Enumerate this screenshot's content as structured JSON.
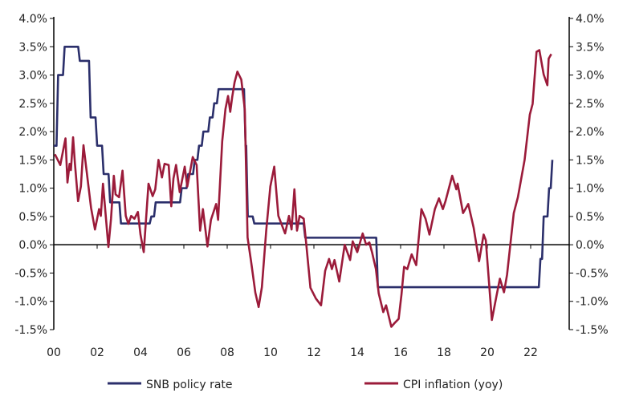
{
  "chart_data": {
    "type": "line",
    "xlim": [
      2000,
      2023.3
    ],
    "ylim": [
      -1.5,
      4.0
    ],
    "y_ticks": [
      "4.0%",
      "3.5%",
      "3.0%",
      "2.5%",
      "2.0%",
      "1.5%",
      "1.0%",
      "0.5%",
      "0.0%",
      "-0.5%",
      "-1.0%",
      "-1.5%"
    ],
    "y_tick_values": [
      4.0,
      3.5,
      3.0,
      2.5,
      2.0,
      1.5,
      1.0,
      0.5,
      0.0,
      -0.5,
      -1.0,
      -1.5
    ],
    "x_ticks": [
      "00",
      "02",
      "04",
      "06",
      "08",
      "10",
      "12",
      "14",
      "16",
      "18",
      "20",
      "22"
    ],
    "x_tick_values": [
      2000,
      2002,
      2004,
      2006,
      2008,
      2010,
      2012,
      2014,
      2016,
      2018,
      2020,
      2022
    ],
    "grid": false,
    "legend_position": "bottom",
    "series": [
      {
        "name": "SNB policy rate",
        "color": "#2b2f6b",
        "step": true,
        "points": [
          [
            2000.0,
            1.75
          ],
          [
            2000.2,
            3.0
          ],
          [
            2000.5,
            3.5
          ],
          [
            2001.2,
            3.25
          ],
          [
            2001.7,
            2.25
          ],
          [
            2002.0,
            1.75
          ],
          [
            2002.3,
            1.25
          ],
          [
            2002.6,
            0.75
          ],
          [
            2003.1,
            0.375
          ],
          [
            2004.5,
            0.5
          ],
          [
            2004.7,
            0.75
          ],
          [
            2005.9,
            1.0
          ],
          [
            2006.2,
            1.25
          ],
          [
            2006.5,
            1.5
          ],
          [
            2006.7,
            1.75
          ],
          [
            2006.9,
            2.0
          ],
          [
            2007.2,
            2.25
          ],
          [
            2007.4,
            2.5
          ],
          [
            2007.6,
            2.75
          ],
          [
            2008.85,
            1.75
          ],
          [
            2008.95,
            0.5
          ],
          [
            2009.25,
            0.375
          ],
          [
            2011.6,
            0.125
          ],
          [
            2014.95,
            -0.75
          ],
          [
            2022.45,
            -0.25
          ],
          [
            2022.6,
            0.5
          ],
          [
            2022.85,
            1.0
          ],
          [
            2023.0,
            1.5
          ]
        ]
      },
      {
        "name": "CPI inflation (yoy)",
        "color": "#9b1b3a",
        "step": false,
        "points": [
          [
            2000.05,
            1.6
          ],
          [
            2000.3,
            1.41
          ],
          [
            2000.54,
            1.88
          ],
          [
            2000.63,
            1.1
          ],
          [
            2000.73,
            1.43
          ],
          [
            2000.79,
            1.32
          ],
          [
            2000.89,
            1.9
          ],
          [
            2000.97,
            1.46
          ],
          [
            2001.12,
            0.77
          ],
          [
            2001.25,
            1.03
          ],
          [
            2001.37,
            1.76
          ],
          [
            2001.72,
            0.65
          ],
          [
            2001.9,
            0.27
          ],
          [
            2002.09,
            0.63
          ],
          [
            2002.17,
            0.51
          ],
          [
            2002.27,
            1.08
          ],
          [
            2002.52,
            -0.04
          ],
          [
            2002.64,
            0.46
          ],
          [
            2002.77,
            1.22
          ],
          [
            2002.85,
            0.89
          ],
          [
            2003.01,
            0.84
          ],
          [
            2003.17,
            1.31
          ],
          [
            2003.32,
            0.51
          ],
          [
            2003.44,
            0.37
          ],
          [
            2003.57,
            0.51
          ],
          [
            2003.72,
            0.46
          ],
          [
            2003.88,
            0.58
          ],
          [
            2004.0,
            0.18
          ],
          [
            2004.15,
            -0.13
          ],
          [
            2004.37,
            1.08
          ],
          [
            2004.56,
            0.86
          ],
          [
            2004.68,
            0.98
          ],
          [
            2004.83,
            1.5
          ],
          [
            2004.99,
            1.19
          ],
          [
            2005.11,
            1.43
          ],
          [
            2005.3,
            1.41
          ],
          [
            2005.42,
            0.68
          ],
          [
            2005.52,
            1.17
          ],
          [
            2005.64,
            1.41
          ],
          [
            2005.81,
            0.93
          ],
          [
            2006.04,
            1.38
          ],
          [
            2006.16,
            1.03
          ],
          [
            2006.41,
            1.55
          ],
          [
            2006.59,
            1.41
          ],
          [
            2006.75,
            0.25
          ],
          [
            2006.88,
            0.63
          ],
          [
            2007.09,
            -0.03
          ],
          [
            2007.25,
            0.44
          ],
          [
            2007.49,
            0.72
          ],
          [
            2007.58,
            0.44
          ],
          [
            2007.77,
            1.83
          ],
          [
            2007.92,
            2.4
          ],
          [
            2008.04,
            2.63
          ],
          [
            2008.14,
            2.35
          ],
          [
            2008.23,
            2.61
          ],
          [
            2008.34,
            2.87
          ],
          [
            2008.47,
            3.06
          ],
          [
            2008.65,
            2.92
          ],
          [
            2008.81,
            2.4
          ],
          [
            2008.94,
            0.13
          ],
          [
            2009.1,
            -0.29
          ],
          [
            2009.3,
            -0.85
          ],
          [
            2009.45,
            -1.1
          ],
          [
            2009.6,
            -0.75
          ],
          [
            2009.8,
            0.25
          ],
          [
            2009.99,
            1.03
          ],
          [
            2010.17,
            1.38
          ],
          [
            2010.36,
            0.51
          ],
          [
            2010.67,
            0.2
          ],
          [
            2010.85,
            0.51
          ],
          [
            2010.97,
            0.27
          ],
          [
            2011.1,
            0.98
          ],
          [
            2011.22,
            0.25
          ],
          [
            2011.34,
            0.51
          ],
          [
            2011.53,
            0.46
          ],
          [
            2011.65,
            0.0
          ],
          [
            2011.84,
            -0.76
          ],
          [
            2012.09,
            -0.95
          ],
          [
            2012.33,
            -1.07
          ],
          [
            2012.52,
            -0.46
          ],
          [
            2012.7,
            -0.25
          ],
          [
            2012.83,
            -0.43
          ],
          [
            2012.95,
            -0.27
          ],
          [
            2013.17,
            -0.65
          ],
          [
            2013.42,
            0.0
          ],
          [
            2013.67,
            -0.27
          ],
          [
            2013.79,
            0.06
          ],
          [
            2014.0,
            -0.13
          ],
          [
            2014.25,
            0.2
          ],
          [
            2014.41,
            0.0
          ],
          [
            2014.56,
            0.04
          ],
          [
            2014.68,
            -0.13
          ],
          [
            2014.86,
            -0.43
          ],
          [
            2014.99,
            -0.86
          ],
          [
            2015.2,
            -1.19
          ],
          [
            2015.33,
            -1.07
          ],
          [
            2015.57,
            -1.45
          ],
          [
            2015.73,
            -1.38
          ],
          [
            2015.91,
            -1.31
          ],
          [
            2016.04,
            -0.88
          ],
          [
            2016.16,
            -0.39
          ],
          [
            2016.31,
            -0.43
          ],
          [
            2016.51,
            -0.17
          ],
          [
            2016.72,
            -0.36
          ],
          [
            2016.96,
            0.63
          ],
          [
            2017.15,
            0.46
          ],
          [
            2017.33,
            0.18
          ],
          [
            2017.58,
            0.63
          ],
          [
            2017.77,
            0.82
          ],
          [
            2017.95,
            0.63
          ],
          [
            2018.07,
            0.77
          ],
          [
            2018.38,
            1.22
          ],
          [
            2018.57,
            0.98
          ],
          [
            2018.63,
            1.08
          ],
          [
            2018.88,
            0.56
          ],
          [
            2019.12,
            0.72
          ],
          [
            2019.37,
            0.3
          ],
          [
            2019.62,
            -0.29
          ],
          [
            2019.83,
            0.18
          ],
          [
            2019.93,
            0.08
          ],
          [
            2020.21,
            -1.33
          ],
          [
            2020.42,
            -0.91
          ],
          [
            2020.58,
            -0.6
          ],
          [
            2020.77,
            -0.84
          ],
          [
            2020.91,
            -0.53
          ],
          [
            2021.22,
            0.56
          ],
          [
            2021.41,
            0.84
          ],
          [
            2021.72,
            1.5
          ],
          [
            2021.96,
            2.3
          ],
          [
            2022.09,
            2.49
          ],
          [
            2022.27,
            3.41
          ],
          [
            2022.4,
            3.44
          ],
          [
            2022.6,
            3.01
          ],
          [
            2022.77,
            2.82
          ],
          [
            2022.83,
            3.29
          ],
          [
            2022.95,
            3.37
          ]
        ]
      }
    ]
  }
}
